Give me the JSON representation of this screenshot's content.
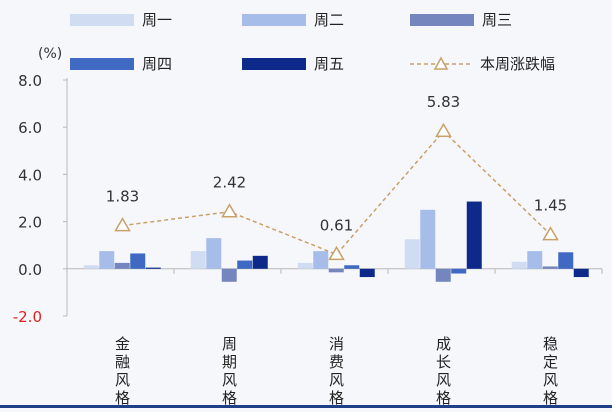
{
  "chart_data": {
    "type": "bar",
    "unit_label": "(%)",
    "categories": [
      "金融风格",
      "周期风格",
      "消费风格",
      "成长风格",
      "稳定风格"
    ],
    "ylim": [
      -2.0,
      8.0
    ],
    "yticks": [
      "8.0",
      "6.0",
      "4.0",
      "2.0",
      "0.0",
      "-2.0"
    ],
    "ytick_values": [
      8,
      6,
      4,
      2,
      0,
      -2
    ],
    "grid": false,
    "legend_position": "top",
    "series": [
      {
        "name": "周一",
        "color": "#d0dcf2",
        "values": [
          0.15,
          0.75,
          0.25,
          1.25,
          0.3
        ]
      },
      {
        "name": "周二",
        "color": "#a7bde9",
        "values": [
          0.75,
          1.3,
          0.75,
          2.5,
          0.75
        ]
      },
      {
        "name": "周三",
        "color": "#7585bd",
        "values": [
          0.25,
          -0.55,
          -0.15,
          -0.55,
          0.1
        ]
      },
      {
        "name": "周四",
        "color": "#3f69c2",
        "values": [
          0.65,
          0.35,
          0.15,
          -0.2,
          0.7
        ]
      },
      {
        "name": "周五",
        "color": "#0d2a8a",
        "values": [
          0.05,
          0.55,
          -0.35,
          2.85,
          -0.35
        ]
      }
    ],
    "line_series": {
      "name": "本周涨跌幅",
      "color": "#c8a06a",
      "values": [
        1.83,
        2.42,
        0.61,
        5.83,
        1.45
      ],
      "labels": [
        "1.83",
        "2.42",
        "0.61",
        "5.83",
        "1.45"
      ]
    },
    "negative_tick_color": "#e02020"
  }
}
